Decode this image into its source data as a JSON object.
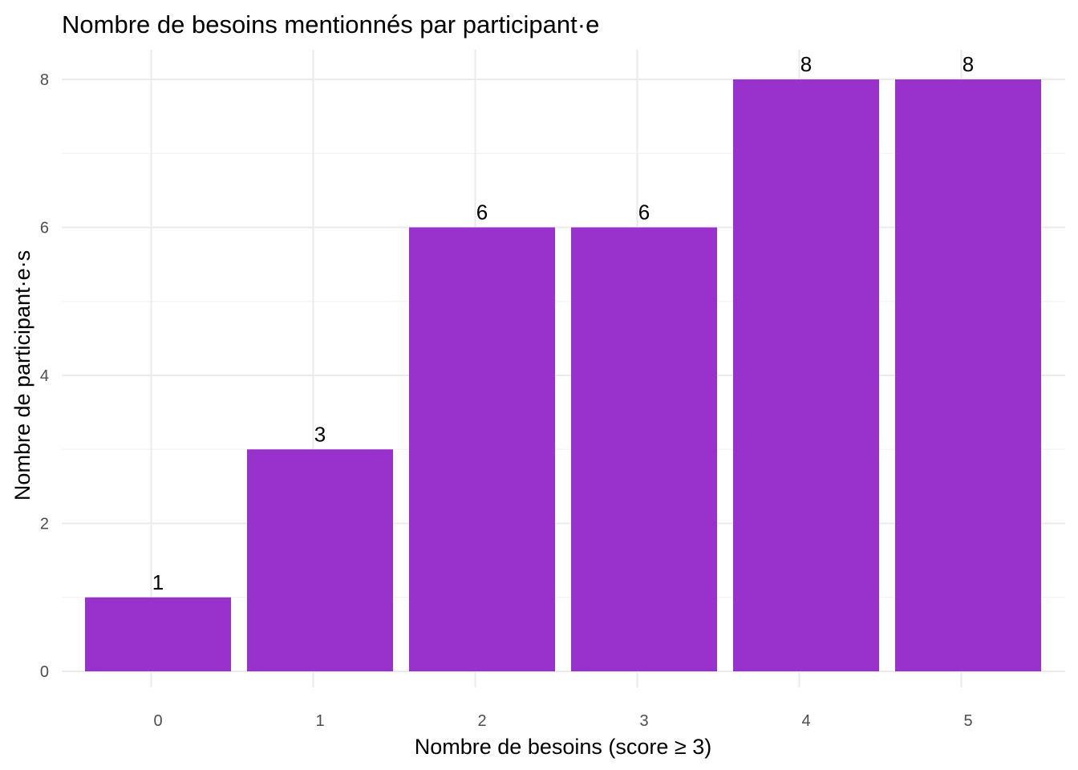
{
  "chart_data": {
    "type": "bar",
    "title": "Nombre de besoins mentionnés par participant·e",
    "xlabel": "Nombre de besoins (score ≥ 3)",
    "ylabel": "Nombre de participant·e·s",
    "categories": [
      "0",
      "1",
      "2",
      "3",
      "4",
      "5"
    ],
    "values": [
      1,
      3,
      6,
      6,
      8,
      8
    ],
    "data_labels": [
      "1",
      "3",
      "6",
      "6",
      "8",
      "8"
    ],
    "ylim": [
      0,
      8.4
    ],
    "yticks": [
      0,
      2,
      4,
      6,
      8
    ],
    "ytick_labels": [
      "0",
      "2",
      "4",
      "6",
      "8"
    ],
    "grid": true,
    "bar_color": "#9932CC"
  }
}
